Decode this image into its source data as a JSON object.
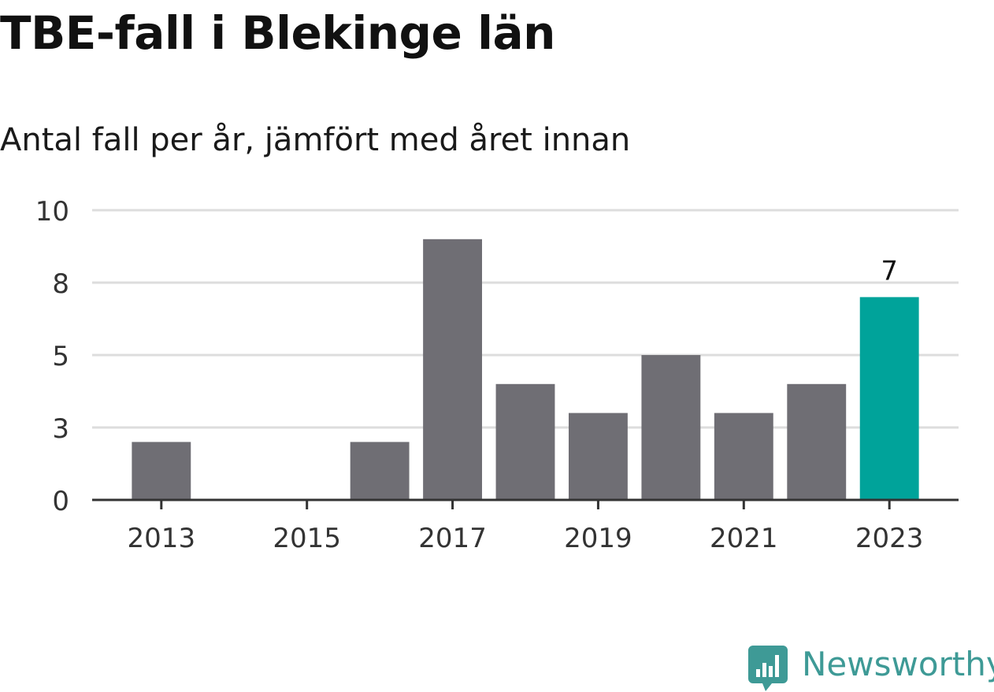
{
  "header": {
    "title": "TBE-fall i Blekinge län",
    "subtitle": "Antal fall per år, jämfört med året innan"
  },
  "chart_data": {
    "type": "bar",
    "title": "TBE-fall i Blekinge län",
    "subtitle": "Antal fall per år, jämfört med året innan",
    "categories": [
      "2013",
      "2014",
      "2015",
      "2016",
      "2017",
      "2018",
      "2019",
      "2020",
      "2021",
      "2022",
      "2023"
    ],
    "values": [
      2,
      0,
      0,
      2,
      9,
      4,
      3,
      5,
      3,
      4,
      7
    ],
    "x_tick_labels": [
      "2013",
      "2015",
      "2017",
      "2019",
      "2021",
      "2023"
    ],
    "y_tick_labels": [
      "0",
      "3",
      "5",
      "8",
      "10"
    ],
    "ylim": [
      0,
      10
    ],
    "grid": true,
    "highlight_category": "2023",
    "highlight_label": "7",
    "colors": {
      "bar": "#6f6e74",
      "highlight": "#00a39a",
      "grid": "#dddddd",
      "axis": "#333333"
    }
  },
  "brand": {
    "name": "Newsworthy",
    "icon": "newsworthy-logo-icon",
    "color": "#3e9a96"
  }
}
